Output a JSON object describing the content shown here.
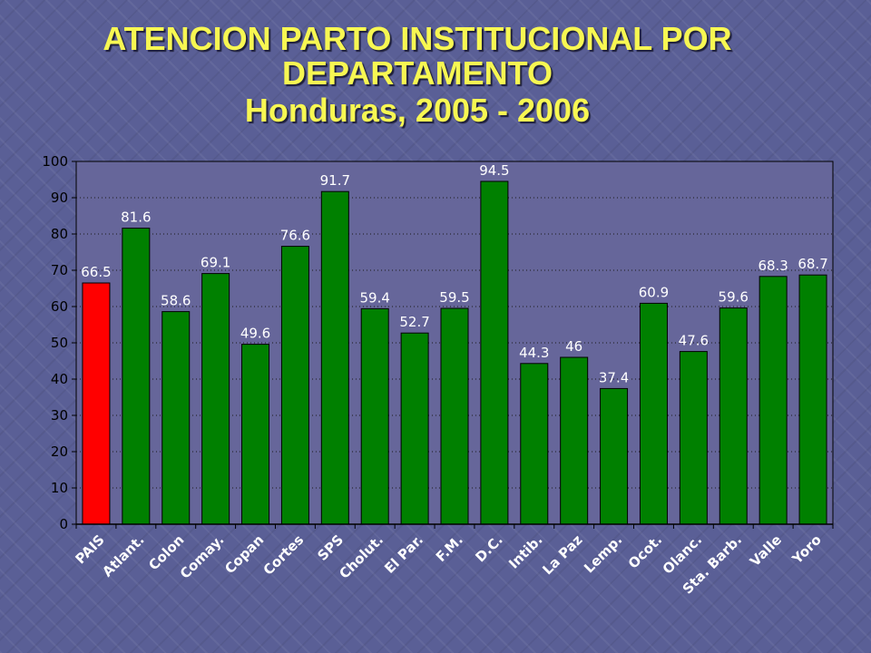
{
  "title": {
    "line1": "ATENCION PARTO INSTITUCIONAL POR",
    "line2": "DEPARTAMENTO",
    "line3": "Honduras, 2005 - 2006"
  },
  "colors": {
    "title": "#f7f752",
    "plot_background": "#66669a",
    "highlight_bar": "#ff0000",
    "bar": "#008000",
    "text": "#ffffff",
    "muted_label": "#c9c9dc"
  },
  "chart_data": {
    "type": "bar",
    "categories": [
      "PAIS",
      "Atlant.",
      "Colon",
      "Comay.",
      "Copan",
      "Cortes",
      "SPS",
      "Cholut.",
      "El Par.",
      "F.M.",
      "D.C.",
      "Intib.",
      "La Paz",
      "Lemp.",
      "Ocot.",
      "Olanc.",
      "Sta. Barb.",
      "Valle",
      "Yoro"
    ],
    "values": [
      66.5,
      81.6,
      58.6,
      69.1,
      49.6,
      76.6,
      91.7,
      59.4,
      52.7,
      59.5,
      94.5,
      44.3,
      46,
      37.4,
      60.9,
      47.6,
      59.6,
      68.3,
      68.7
    ],
    "data_labels": [
      "66.5",
      "81.6",
      "58.6",
      "69.1",
      "49.6",
      "76.6",
      "91.7",
      "59.4",
      "52.7",
      "59.5",
      "94.5",
      "44.3",
      "46",
      "37.4",
      "60.9",
      "47.6",
      "59.6",
      "68.3",
      "68.7"
    ],
    "highlight_categories": [
      "PAIS"
    ],
    "muted_categories": [
      "Colon"
    ],
    "ylim": [
      0,
      100
    ],
    "yticks": [
      0,
      10,
      20,
      30,
      40,
      50,
      60,
      70,
      80,
      90,
      100
    ],
    "grid": "horizontal-dotted",
    "legend": "none",
    "xlabel": "",
    "ylabel": ""
  }
}
